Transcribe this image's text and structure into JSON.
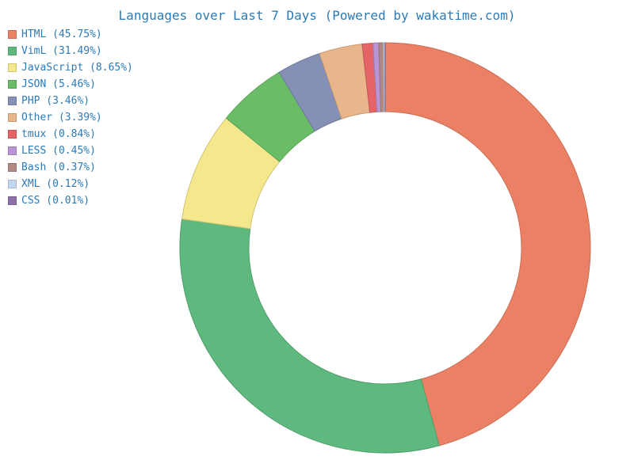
{
  "chart_data": {
    "type": "pie",
    "title": "Languages over Last 7 Days (Powered by wakatime.com)",
    "legend_position": "top-left",
    "hole": "donut",
    "slices": [
      {
        "label": "HTML (45.75%)",
        "name": "HTML",
        "value": 45.75,
        "color": "#ec8064"
      },
      {
        "label": "VimL (31.49%)",
        "name": "VimL",
        "value": 31.49,
        "color": "#5eb97f"
      },
      {
        "label": "JavaScript (8.65%)",
        "name": "JavaScript",
        "value": 8.65,
        "color": "#f5e78c"
      },
      {
        "label": "JSON (5.46%)",
        "name": "JSON",
        "value": 5.46,
        "color": "#6abd66"
      },
      {
        "label": "PHP (3.46%)",
        "name": "PHP",
        "value": 3.46,
        "color": "#8590b7"
      },
      {
        "label": "Other (3.39%)",
        "name": "Other",
        "value": 3.39,
        "color": "#e8b68a"
      },
      {
        "label": "tmux (0.84%)",
        "name": "tmux",
        "value": 0.84,
        "color": "#e56468"
      },
      {
        "label": "LESS (0.45%)",
        "name": "LESS",
        "value": 0.45,
        "color": "#b995d6"
      },
      {
        "label": "Bash (0.37%)",
        "name": "Bash",
        "value": 0.37,
        "color": "#b08a82"
      },
      {
        "label": "XML (0.12%)",
        "name": "XML",
        "value": 0.12,
        "color": "#c2d7ee"
      },
      {
        "label": "CSS (0.01%)",
        "name": "CSS",
        "value": 0.01,
        "color": "#8d70a8"
      }
    ]
  }
}
